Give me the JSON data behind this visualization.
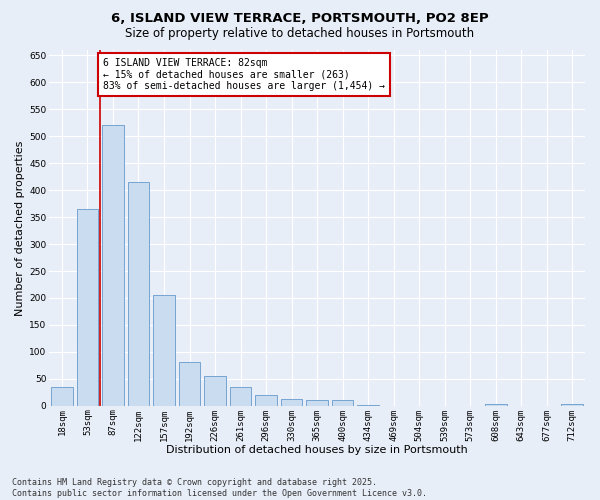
{
  "title_line1": "6, ISLAND VIEW TERRACE, PORTSMOUTH, PO2 8EP",
  "title_line2": "Size of property relative to detached houses in Portsmouth",
  "xlabel": "Distribution of detached houses by size in Portsmouth",
  "ylabel": "Number of detached properties",
  "categories": [
    "18sqm",
    "53sqm",
    "87sqm",
    "122sqm",
    "157sqm",
    "192sqm",
    "226sqm",
    "261sqm",
    "296sqm",
    "330sqm",
    "365sqm",
    "400sqm",
    "434sqm",
    "469sqm",
    "504sqm",
    "539sqm",
    "573sqm",
    "608sqm",
    "643sqm",
    "677sqm",
    "712sqm"
  ],
  "values": [
    35,
    365,
    520,
    415,
    205,
    82,
    55,
    35,
    20,
    12,
    10,
    10,
    1,
    0,
    0,
    0,
    0,
    3,
    0,
    0,
    4
  ],
  "bar_color": "#c9dcf0",
  "bar_edge_color": "#6699cc",
  "vline_x": 1.5,
  "vline_color": "#cc0000",
  "annotation_text": "6 ISLAND VIEW TERRACE: 82sqm\n← 15% of detached houses are smaller (263)\n83% of semi-detached houses are larger (1,454) →",
  "annotation_box_color": "#ffffff",
  "annotation_box_edge": "#cc0000",
  "ylim": [
    0,
    660
  ],
  "yticks": [
    0,
    50,
    100,
    150,
    200,
    250,
    300,
    350,
    400,
    450,
    500,
    550,
    600,
    650
  ],
  "footer_line1": "Contains HM Land Registry data © Crown copyright and database right 2025.",
  "footer_line2": "Contains public sector information licensed under the Open Government Licence v3.0.",
  "bg_color": "#e8eef8",
  "plot_bg_color": "#e8eef8",
  "grid_color": "#ffffff",
  "title_fontsize": 9.5,
  "subtitle_fontsize": 8.5,
  "label_fontsize": 8,
  "tick_fontsize": 6.5,
  "footer_fontsize": 6,
  "ann_fontsize": 7
}
